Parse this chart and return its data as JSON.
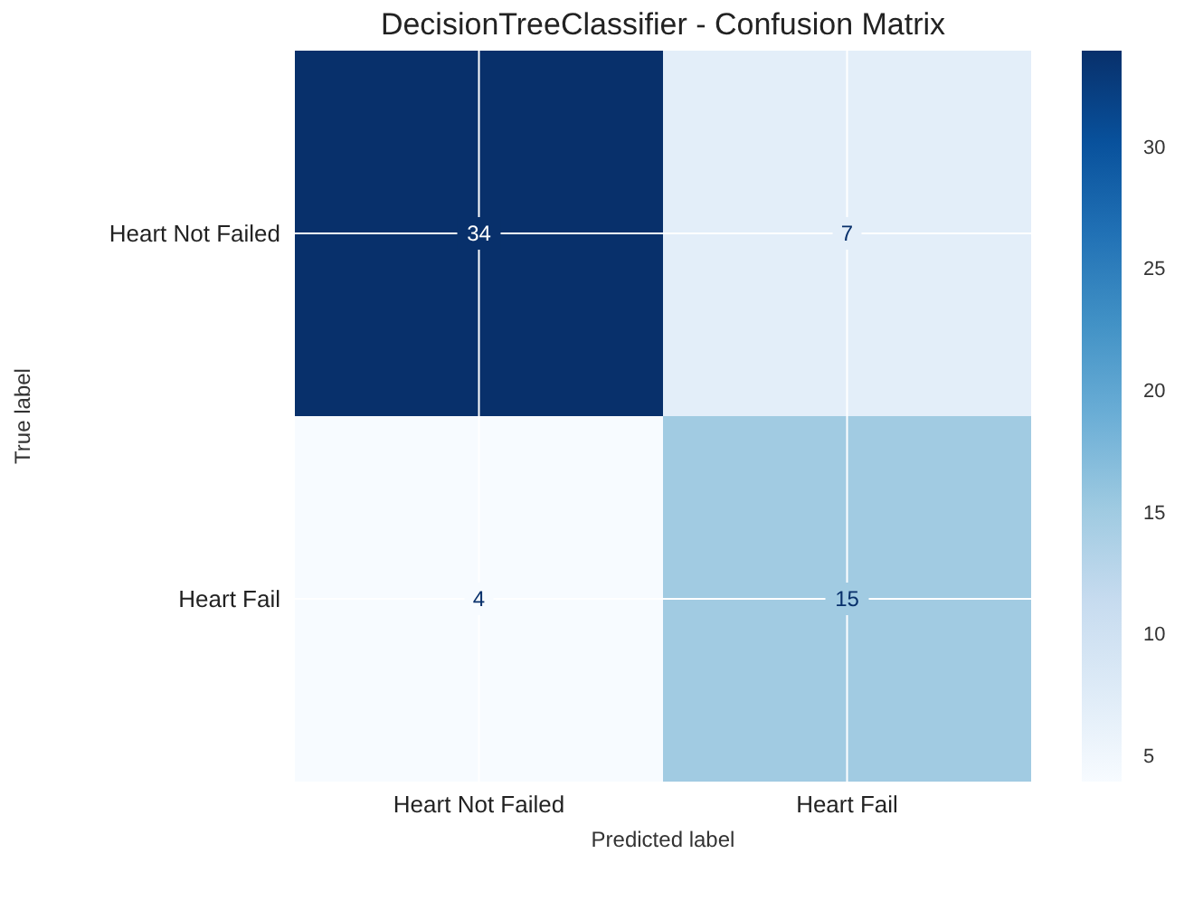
{
  "chart_data": {
    "type": "heatmap",
    "title": "DecisionTreeClassifier - Confusion Matrix",
    "xlabel": "Predicted label",
    "ylabel": "True label",
    "categories": [
      "Heart Not Failed",
      "Heart Fail"
    ],
    "y_categories": [
      "Heart Not Failed",
      "Heart Fail"
    ],
    "cells": [
      [
        34,
        7
      ],
      [
        4,
        15
      ]
    ],
    "clim": [
      4,
      34
    ],
    "cticks": [
      5,
      10,
      15,
      20,
      25,
      30
    ],
    "grid": true,
    "data_labels": true
  }
}
